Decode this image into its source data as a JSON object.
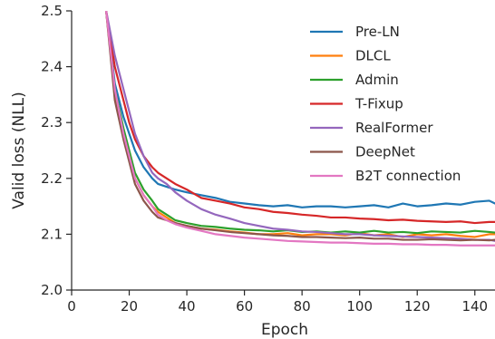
{
  "chart_data": {
    "type": "line",
    "title": "",
    "xlabel": "Epoch",
    "ylabel": "Valid loss (NLL)",
    "xlim": [
      0,
      147
    ],
    "ylim": [
      2.0,
      2.5
    ],
    "xticks": [
      0,
      20,
      40,
      60,
      80,
      100,
      120,
      140
    ],
    "yticks": [
      2.0,
      2.1,
      2.2,
      2.3,
      2.4,
      2.5
    ],
    "xtick_labels": [
      "0",
      "20",
      "40",
      "60",
      "80",
      "100",
      "120",
      "140"
    ],
    "ytick_labels": [
      "2.0",
      "2.1",
      "2.2",
      "2.3",
      "2.4",
      "2.5"
    ],
    "grid": false,
    "legend_position": "top-right",
    "x": [
      12,
      15,
      18,
      20,
      22,
      25,
      28,
      30,
      33,
      36,
      40,
      45,
      50,
      55,
      60,
      65,
      70,
      75,
      80,
      85,
      90,
      95,
      100,
      105,
      110,
      115,
      120,
      125,
      130,
      135,
      140,
      145,
      147
    ],
    "series": [
      {
        "name": "Pre-LN",
        "color": "#1f77b4",
        "values": [
          2.5,
          2.37,
          2.31,
          2.28,
          2.25,
          2.22,
          2.2,
          2.19,
          2.185,
          2.18,
          2.175,
          2.17,
          2.165,
          2.158,
          2.155,
          2.152,
          2.15,
          2.152,
          2.148,
          2.15,
          2.15,
          2.148,
          2.15,
          2.152,
          2.148,
          2.155,
          2.15,
          2.152,
          2.155,
          2.153,
          2.158,
          2.16,
          2.155
        ]
      },
      {
        "name": "DLCL",
        "color": "#ff7f0e",
        "values": [
          2.5,
          2.35,
          2.28,
          2.24,
          2.2,
          2.17,
          2.15,
          2.14,
          2.13,
          2.12,
          2.115,
          2.11,
          2.108,
          2.105,
          2.103,
          2.1,
          2.1,
          2.102,
          2.098,
          2.1,
          2.1,
          2.098,
          2.102,
          2.098,
          2.1,
          2.095,
          2.1,
          2.098,
          2.1,
          2.097,
          2.095,
          2.1,
          2.1
        ]
      },
      {
        "name": "Admin",
        "color": "#2ca02c",
        "values": [
          2.5,
          2.36,
          2.29,
          2.25,
          2.21,
          2.18,
          2.16,
          2.145,
          2.135,
          2.125,
          2.12,
          2.115,
          2.113,
          2.11,
          2.108,
          2.107,
          2.105,
          2.107,
          2.104,
          2.105,
          2.103,
          2.105,
          2.103,
          2.106,
          2.103,
          2.104,
          2.102,
          2.105,
          2.104,
          2.103,
          2.106,
          2.104,
          2.103
        ]
      },
      {
        "name": "T-Fixup",
        "color": "#d62728",
        "values": [
          2.5,
          2.4,
          2.34,
          2.3,
          2.27,
          2.24,
          2.22,
          2.21,
          2.2,
          2.19,
          2.18,
          2.165,
          2.16,
          2.155,
          2.148,
          2.145,
          2.14,
          2.138,
          2.135,
          2.133,
          2.13,
          2.13,
          2.128,
          2.127,
          2.125,
          2.126,
          2.124,
          2.123,
          2.122,
          2.123,
          2.12,
          2.122,
          2.122
        ]
      },
      {
        "name": "RealFormer",
        "color": "#9467bd",
        "values": [
          2.5,
          2.42,
          2.36,
          2.32,
          2.28,
          2.24,
          2.21,
          2.2,
          2.19,
          2.175,
          2.16,
          2.145,
          2.135,
          2.128,
          2.12,
          2.115,
          2.11,
          2.108,
          2.105,
          2.104,
          2.102,
          2.1,
          2.1,
          2.098,
          2.097,
          2.096,
          2.095,
          2.094,
          2.093,
          2.092,
          2.09,
          2.09,
          2.088
        ]
      },
      {
        "name": "DeepNet",
        "color": "#8c564b",
        "values": [
          2.5,
          2.34,
          2.27,
          2.23,
          2.19,
          2.16,
          2.14,
          2.13,
          2.125,
          2.12,
          2.115,
          2.11,
          2.107,
          2.104,
          2.102,
          2.1,
          2.098,
          2.097,
          2.095,
          2.095,
          2.094,
          2.093,
          2.094,
          2.092,
          2.092,
          2.09,
          2.09,
          2.091,
          2.09,
          2.089,
          2.09,
          2.089,
          2.09
        ]
      },
      {
        "name": "B2T connection",
        "color": "#e377c2",
        "values": [
          2.5,
          2.36,
          2.28,
          2.24,
          2.2,
          2.17,
          2.15,
          2.135,
          2.125,
          2.118,
          2.112,
          2.106,
          2.1,
          2.097,
          2.094,
          2.092,
          2.09,
          2.088,
          2.087,
          2.086,
          2.085,
          2.085,
          2.084,
          2.083,
          2.083,
          2.082,
          2.082,
          2.081,
          2.081,
          2.08,
          2.08,
          2.08,
          2.08
        ]
      }
    ]
  }
}
